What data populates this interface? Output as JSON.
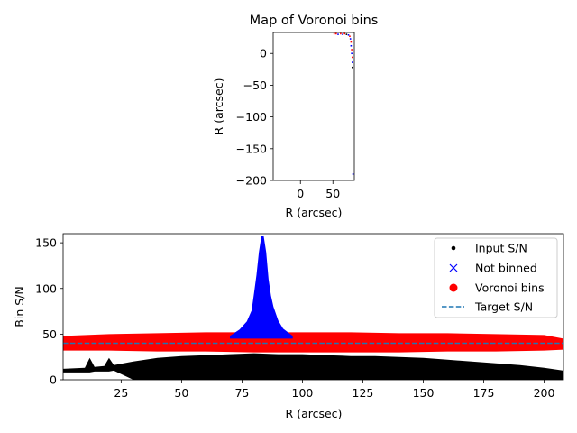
{
  "chart_data": [
    {
      "type": "scatter",
      "title": "Map of Voronoi bins",
      "xlabel": "R (arcsec)",
      "ylabel": "R (arcsec)",
      "xlim": [
        -42,
        83
      ],
      "ylim": [
        -200,
        33
      ],
      "xticks": [
        0,
        50
      ],
      "yticks": [
        0,
        -50,
        -100,
        -150,
        -200
      ],
      "colors": {
        "pixels": [
          "#ff0000",
          "#0000ff",
          "#000000"
        ]
      },
      "pixels": [
        {
          "x": 52,
          "y": 31,
          "c": 0
        },
        {
          "x": 55,
          "y": 31,
          "c": 0
        },
        {
          "x": 58,
          "y": 30,
          "c": 1
        },
        {
          "x": 62,
          "y": 31,
          "c": 0
        },
        {
          "x": 65,
          "y": 30,
          "c": 1
        },
        {
          "x": 68,
          "y": 31,
          "c": 0
        },
        {
          "x": 71,
          "y": 30,
          "c": 2
        },
        {
          "x": 74,
          "y": 29,
          "c": 1
        },
        {
          "x": 76,
          "y": 27,
          "c": 0
        },
        {
          "x": 77,
          "y": 23,
          "c": 1
        },
        {
          "x": 78,
          "y": 18,
          "c": 0
        },
        {
          "x": 78,
          "y": 12,
          "c": 1
        },
        {
          "x": 79,
          "y": 6,
          "c": 0
        },
        {
          "x": 79,
          "y": 0,
          "c": 1
        },
        {
          "x": 80,
          "y": -6,
          "c": 0
        },
        {
          "x": 80,
          "y": -14,
          "c": 1
        },
        {
          "x": 80,
          "y": -22,
          "c": 2
        },
        {
          "x": 81,
          "y": -190,
          "c": 1
        }
      ]
    },
    {
      "type": "scatter",
      "xlabel": "R (arcsec)",
      "ylabel": "Bin S/N",
      "xlim": [
        1,
        208
      ],
      "ylim": [
        0,
        160
      ],
      "xticks": [
        25,
        50,
        75,
        100,
        125,
        150,
        175,
        200
      ],
      "yticks": [
        0,
        50,
        100,
        150
      ],
      "target_sn": 40,
      "legend_position": "upper right",
      "series": [
        {
          "name": "Input S/N",
          "marker": "dot",
          "color": "#000000",
          "envelope": {
            "x": [
              1,
              10,
              12,
              14,
              18,
              20,
              22,
              30,
              40,
              50,
              60,
              70,
              80,
              90,
              100,
              110,
              120,
              130,
              140,
              150,
              160,
              170,
              180,
              190,
              200,
              208
            ],
            "low": [
              8,
              8,
              8,
              9,
              9,
              9,
              10,
              0,
              0,
              0,
              0,
              0,
              0,
              0,
              0,
              0,
              0,
              0,
              0,
              0,
              0,
              0,
              0,
              0,
              0,
              0
            ],
            "high": [
              12,
              13,
              24,
              14,
              15,
              24,
              16,
              20,
              24,
              26,
              27,
              28,
              29,
              28,
              28,
              27,
              26,
              26,
              25,
              24,
              22,
              20,
              18,
              16,
              13,
              10
            ]
          }
        },
        {
          "name": "Not binned",
          "marker": "x",
          "color": "#0000ff",
          "envelope": {
            "x": [
              70,
              74,
              77,
              79,
              80,
              81,
              82,
              83,
              84,
              85,
              86,
              87,
              88,
              90,
              92,
              96
            ],
            "low": [
              45,
              45,
              45,
              45,
              45,
              45,
              45,
              45,
              45,
              45,
              45,
              45,
              45,
              45,
              45,
              45
            ],
            "high": [
              48,
              55,
              64,
              76,
              95,
              115,
              140,
              157,
              157,
              140,
              110,
              92,
              80,
              65,
              56,
              48
            ]
          }
        },
        {
          "name": "Voronoi bins",
          "marker": "circle",
          "color": "#ff0000",
          "band": {
            "x": [
              1,
              20,
              40,
              60,
              80,
              100,
              120,
              140,
              160,
              180,
              200,
              208
            ],
            "low": [
              32,
              32,
              31,
              31,
              30,
              30,
              30,
              30,
              31,
              31,
              32,
              33
            ],
            "high": [
              48,
              50,
              51,
              52,
              52,
              52,
              52,
              51,
              51,
              50,
              49,
              45
            ]
          }
        },
        {
          "name": "Target S/N",
          "marker": "dashed-line",
          "color": "#1f77b4",
          "value": 40
        }
      ]
    }
  ]
}
